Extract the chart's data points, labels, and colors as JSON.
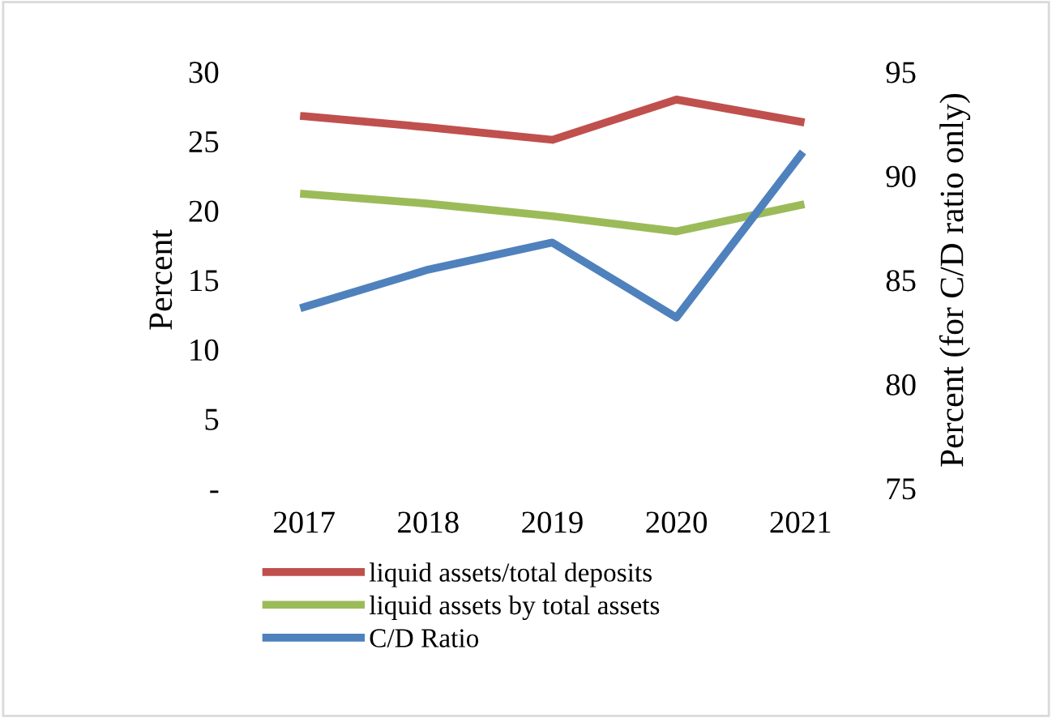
{
  "chart_data": {
    "type": "line",
    "ylabel": "Percent",
    "y2label": "Percent (for C/D ratio only)",
    "categories": [
      "2017",
      "2018",
      "2019",
      "2020",
      "2021"
    ],
    "series": [
      {
        "name": "liquid assets/total deposits",
        "color": "#c0504d",
        "values": [
          26.8,
          26.0,
          25.1,
          28.0,
          26.4
        ]
      },
      {
        "name": "liquid assets by total assets",
        "color": "#9bbb59",
        "values": [
          21.2,
          20.5,
          19.6,
          18.5,
          20.4
        ]
      },
      {
        "name": "C/D Ratio",
        "color": "#4f81bd",
        "axis": "y2",
        "values": [
          83.7,
          85.5,
          86.8,
          83.2,
          91.0
        ]
      }
    ],
    "ylim": [
      0,
      30
    ],
    "yticks": [
      {
        "value": 0,
        "label": "-"
      },
      5,
      10,
      15,
      20,
      25,
      30
    ],
    "y2lim": [
      75,
      95
    ],
    "y2ticks": [
      75,
      80,
      85,
      90,
      95
    ],
    "legend": "bottom",
    "grid": false,
    "marker": "none",
    "line_style": "solid"
  }
}
